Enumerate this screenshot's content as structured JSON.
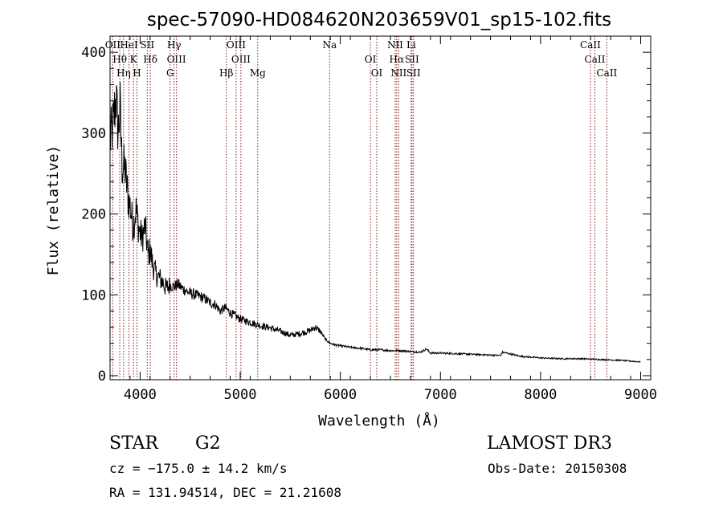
{
  "chart_data": {
    "type": "line",
    "title": "spec-57090-HD084620N203659V01_sp15-102.fits",
    "xlabel": "Wavelength (Å)",
    "ylabel": "Flux (relative)",
    "xlim": [
      3700,
      9100
    ],
    "ylim": [
      -5,
      420
    ],
    "x_ticks": [
      4000,
      5000,
      6000,
      7000,
      8000,
      9000
    ],
    "y_ticks": [
      0,
      100,
      200,
      300,
      400
    ],
    "series": [
      {
        "name": "spectrum",
        "x": [
          3700,
          3730,
          3760,
          3780,
          3800,
          3820,
          3850,
          3880,
          3900,
          3930,
          3960,
          3990,
          4020,
          4050,
          4080,
          4100,
          4130,
          4160,
          4200,
          4230,
          4260,
          4300,
          4340,
          4380,
          4420,
          4460,
          4500,
          4550,
          4600,
          4650,
          4700,
          4750,
          4800,
          4850,
          4900,
          4950,
          5000,
          5050,
          5100,
          5150,
          5200,
          5300,
          5400,
          5500,
          5600,
          5700,
          5750,
          5800,
          5850,
          5900,
          5950,
          6000,
          6100,
          6200,
          6300,
          6400,
          6500,
          6600,
          6700,
          6800,
          6860,
          6900,
          7000,
          7200,
          7400,
          7600,
          7620,
          7800,
          8000,
          8200,
          8400,
          8600,
          8800,
          9000
        ],
        "y": [
          290,
          310,
          345,
          300,
          330,
          260,
          255,
          220,
          210,
          185,
          205,
          180,
          170,
          185,
          150,
          155,
          135,
          125,
          120,
          115,
          108,
          112,
          110,
          113,
          108,
          105,
          102,
          100,
          98,
          95,
          90,
          88,
          80,
          84,
          78,
          74,
          70,
          68,
          66,
          64,
          62,
          59,
          55,
          50,
          52,
          56,
          60,
          55,
          45,
          40,
          38,
          37,
          35,
          34,
          32,
          32,
          31,
          31,
          30,
          29,
          33,
          28,
          28,
          27,
          26,
          25,
          29,
          24,
          22,
          21,
          21,
          20,
          19,
          17
        ]
      }
    ],
    "lines": [
      {
        "label": "OII",
        "x": 3727
      },
      {
        "label": "Hθ",
        "x": 3797
      },
      {
        "label": "Hη",
        "x": 3835
      },
      {
        "label": "HeI",
        "x": 3889
      },
      {
        "label": "K",
        "x": 3934
      },
      {
        "label": "H",
        "x": 3969
      },
      {
        "label": "SII",
        "x": 4072
      },
      {
        "label": "Hδ",
        "x": 4102
      },
      {
        "label": "G",
        "x": 4300
      },
      {
        "label": "Hγ",
        "x": 4340
      },
      {
        "label": "OIII",
        "x": 4363
      },
      {
        "label": "Hβ",
        "x": 4861
      },
      {
        "label": "OIII",
        "x": 4959
      },
      {
        "label": "OIII",
        "x": 5007
      },
      {
        "label": "Mg",
        "x": 5175
      },
      {
        "label": "Na",
        "x": 5893
      },
      {
        "label": "OI",
        "x": 6300
      },
      {
        "label": "OI",
        "x": 6364
      },
      {
        "label": "NII",
        "x": 6548
      },
      {
        "label": "Hα",
        "x": 6563
      },
      {
        "label": "NII",
        "x": 6583
      },
      {
        "label": "Li",
        "x": 6708
      },
      {
        "label": "SII",
        "x": 6716
      },
      {
        "label": "SII",
        "x": 6731
      },
      {
        "label": "CaII",
        "x": 8498
      },
      {
        "label": "CaII",
        "x": 8542
      },
      {
        "label": "CaII",
        "x": 8662
      }
    ]
  },
  "info": {
    "object_type": "STAR",
    "subclass": "G2",
    "survey": "LAMOST DR3",
    "cz": "cz = −175.0 ± 14.2 km/s",
    "obs_date": "Obs-Date: 20150308",
    "coords": "RA = 131.94514, DEC =  21.21608"
  }
}
